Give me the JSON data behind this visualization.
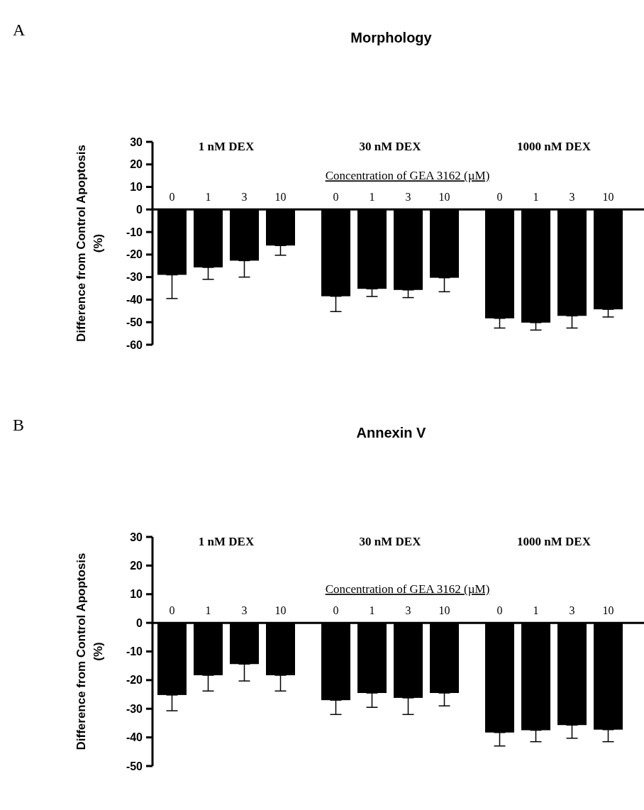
{
  "chart_data": [
    {
      "type": "bar",
      "title": "Morphology",
      "xlabel": "Concentration of GEA 3162 (µM)",
      "ylabel": "Difference from Control Apoptosis (%)",
      "annotations": [
        "A",
        "1 nM DEX",
        "30 nM DEX",
        "1000 nM DEX"
      ],
      "categories": [
        "0",
        "1",
        "3",
        "10",
        "0",
        "1",
        "3",
        "10",
        "0",
        "1",
        "3",
        "10"
      ],
      "values": [
        -29,
        -25.7,
        -22.7,
        -16,
        -38.5,
        -35.2,
        -35.7,
        -30.3,
        -48.3,
        -50.2,
        -47.2,
        -44.3
      ],
      "errors": [
        [
          -39.5,
          -29
        ],
        [
          -31,
          -25.7
        ],
        [
          -30,
          -22.7
        ],
        [
          -20.3,
          -16
        ],
        [
          -45.3,
          -38.5
        ],
        [
          -38.6,
          -35.2
        ],
        [
          -39.1,
          -35.7
        ],
        [
          -36.5,
          -30.3
        ],
        [
          -52.6,
          -48.3
        ],
        [
          -53.5,
          -50.2
        ],
        [
          -52.6,
          -47.2
        ],
        [
          -47.7,
          -44.3
        ]
      ],
      "color": "#000000",
      "ylim": [
        -60,
        30
      ],
      "yticks": [
        -60,
        -50,
        -40,
        -30,
        -20,
        -10,
        0,
        10,
        20,
        30
      ],
      "grid": false
    },
    {
      "type": "bar",
      "title": "Annexin V",
      "xlabel": "Concentration of GEA 3162 (µM)",
      "ylabel": "Difference from Control Apoptosis (%)",
      "annotations": [
        "B",
        "1 nM DEX",
        "30 nM DEX",
        "1000 nM DEX"
      ],
      "categories": [
        "0",
        "1",
        "3",
        "10",
        "0",
        "1",
        "3",
        "10",
        "0",
        "1",
        "3",
        "10"
      ],
      "values": [
        -25.2,
        -18.3,
        -14.4,
        -18.3,
        -27,
        -24.5,
        -26.2,
        -24.5,
        -38.3,
        -37.5,
        -35.7,
        -37.3
      ],
      "errors": [
        [
          -30.7,
          -25.2
        ],
        [
          -23.8,
          -18.3
        ],
        [
          -20.3,
          -14.4
        ],
        [
          -23.8,
          -18.3
        ],
        [
          -32,
          -27
        ],
        [
          -29.5,
          -24.5
        ],
        [
          -32,
          -26.2
        ],
        [
          -29,
          -24.5
        ],
        [
          -43,
          -38.3
        ],
        [
          -41.5,
          -37.5
        ],
        [
          -40.3,
          -35.7
        ],
        [
          -41.5,
          -37.3
        ]
      ],
      "color": "#000000",
      "ylim": [
        -50,
        30
      ],
      "yticks": [
        -50,
        -40,
        -30,
        -20,
        -10,
        0,
        10,
        20,
        30
      ],
      "grid": false
    }
  ]
}
